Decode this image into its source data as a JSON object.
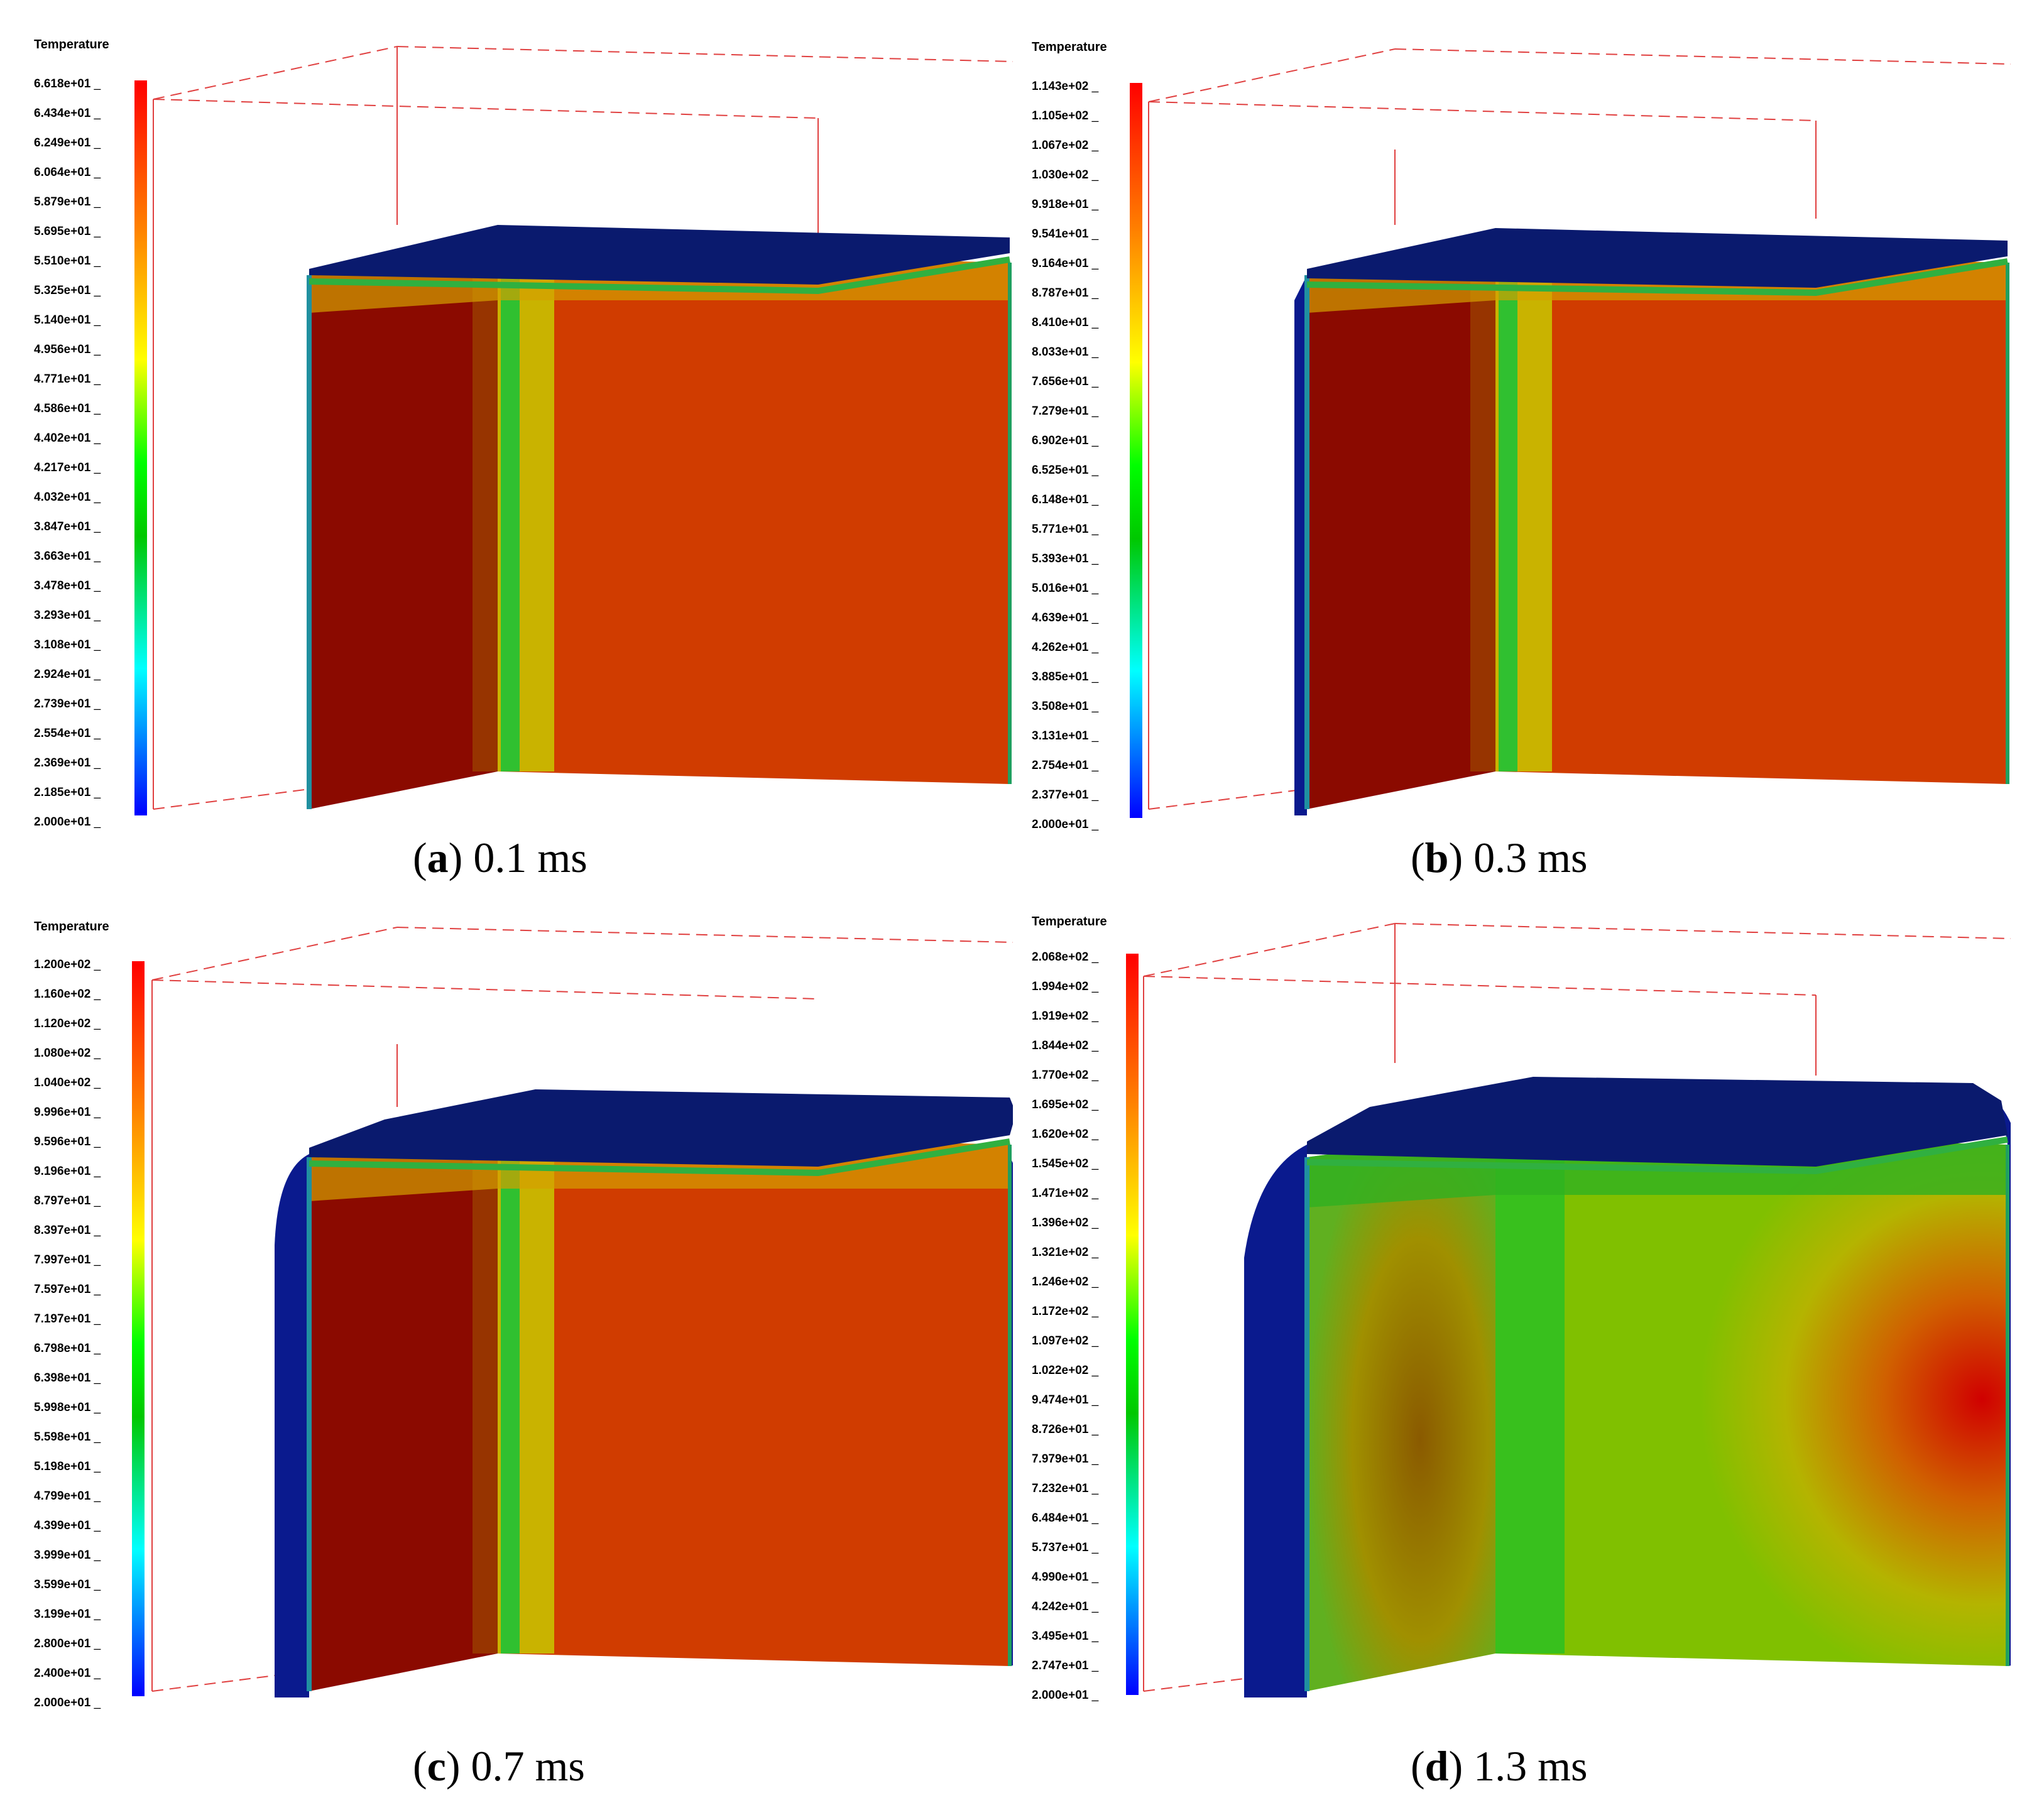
{
  "panels": [
    {
      "id": "a",
      "legend_title": "Temperature",
      "legend_values": [
        "6.618e+01",
        "6.434e+01",
        "6.249e+01",
        "6.064e+01",
        "5.879e+01",
        "5.695e+01",
        "5.510e+01",
        "5.325e+01",
        "5.140e+01",
        "4.956e+01",
        "4.771e+01",
        "4.586e+01",
        "4.402e+01",
        "4.217e+01",
        "4.032e+01",
        "3.847e+01",
        "3.663e+01",
        "3.478e+01",
        "3.293e+01",
        "3.108e+01",
        "2.924e+01",
        "2.739e+01",
        "2.554e+01",
        "2.369e+01",
        "2.185e+01",
        "2.000e+01"
      ],
      "caption_letter": "a",
      "caption_time": "0.1 ms"
    },
    {
      "id": "b",
      "legend_title": "Temperature",
      "legend_values": [
        "1.143e+02",
        "1.105e+02",
        "1.067e+02",
        "1.030e+02",
        "9.918e+01",
        "9.541e+01",
        "9.164e+01",
        "8.787e+01",
        "8.410e+01",
        "8.033e+01",
        "7.656e+01",
        "7.279e+01",
        "6.902e+01",
        "6.525e+01",
        "6.148e+01",
        "5.771e+01",
        "5.393e+01",
        "5.016e+01",
        "4.639e+01",
        "4.262e+01",
        "3.885e+01",
        "3.508e+01",
        "3.131e+01",
        "2.754e+01",
        "2.377e+01",
        "2.000e+01"
      ],
      "caption_letter": "b",
      "caption_time": "0.3 ms"
    },
    {
      "id": "c",
      "legend_title": "Temperature",
      "legend_values": [
        "1.200e+02",
        "1.160e+02",
        "1.120e+02",
        "1.080e+02",
        "1.040e+02",
        "9.996e+01",
        "9.596e+01",
        "9.196e+01",
        "8.797e+01",
        "8.397e+01",
        "7.997e+01",
        "7.597e+01",
        "7.197e+01",
        "6.798e+01",
        "6.398e+01",
        "5.998e+01",
        "5.598e+01",
        "5.198e+01",
        "4.799e+01",
        "4.399e+01",
        "3.999e+01",
        "3.599e+01",
        "3.199e+01",
        "2.800e+01",
        "2.400e+01",
        "2.000e+01"
      ],
      "caption_letter": "c",
      "caption_time": "0.7 ms"
    },
    {
      "id": "d",
      "legend_title": "Temperature",
      "legend_values": [
        "2.068e+02",
        "1.994e+02",
        "1.919e+02",
        "1.844e+02",
        "1.770e+02",
        "1.695e+02",
        "1.620e+02",
        "1.545e+02",
        "1.471e+02",
        "1.396e+02",
        "1.321e+02",
        "1.246e+02",
        "1.172e+02",
        "1.097e+02",
        "1.022e+02",
        "9.474e+01",
        "8.726e+01",
        "7.979e+01",
        "7.232e+01",
        "6.484e+01",
        "5.737e+01",
        "4.990e+01",
        "4.242e+01",
        "3.495e+01",
        "2.747e+01",
        "2.000e+01"
      ],
      "caption_letter": "d",
      "caption_time": "1.3 ms"
    }
  ],
  "colors": {
    "hot_dark": "#8b0a00",
    "hot": "#d03c00",
    "cool_top": "#0a1a6e",
    "bbox_line": "#e04040",
    "green": "#20c020",
    "yellow_green": "#b4b400"
  }
}
